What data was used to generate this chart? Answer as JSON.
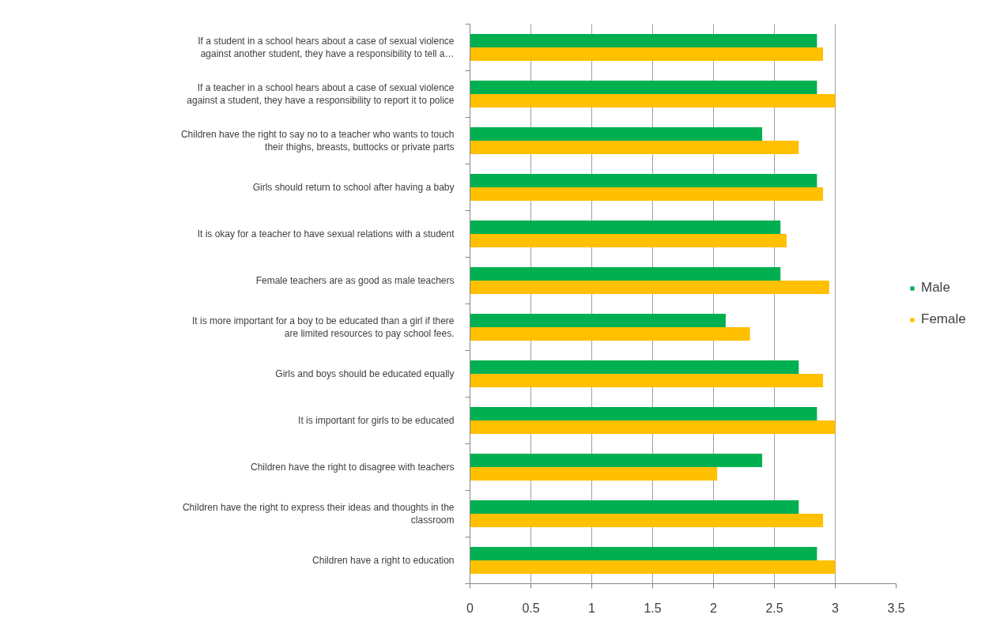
{
  "chart_data": {
    "type": "bar",
    "orientation": "horizontal",
    "categories": [
      "If a student in a school hears about a case of sexual violence\nagainst another student, they have a responsibility to tell a…",
      "If a teacher in a school hears about a case of sexual violence\nagainst a student, they have a responsibility to report it to police",
      "Children have the right to say no to a teacher who wants to touch\ntheir thighs, breasts, buttocks or private parts",
      "Girls should return to school after having a baby",
      "It is okay for a teacher to have sexual relations with a student",
      "Female teachers are as good as male teachers",
      "It is more important for a boy to be educated than a girl if there\nare limited resources to pay school fees.",
      "Girls and boys should be educated equally",
      "It is important for girls to be educated",
      "Children have the right to disagree with teachers",
      "Children have the right to express their ideas and thoughts in the\nclassroom",
      "Children have a right to education"
    ],
    "series": [
      {
        "name": "Male",
        "color": "#00b050",
        "values": [
          2.85,
          2.85,
          2.4,
          2.85,
          2.55,
          2.55,
          2.1,
          2.7,
          2.85,
          2.4,
          2.7,
          2.85
        ]
      },
      {
        "name": "Female",
        "color": "#ffc000",
        "values": [
          2.9,
          3.0,
          2.7,
          2.9,
          2.6,
          2.95,
          2.3,
          2.9,
          3.0,
          2.03,
          2.9,
          3.0
        ]
      }
    ],
    "xlim": [
      0,
      3.5
    ],
    "xticks": [
      0,
      0.5,
      1,
      1.5,
      2,
      2.5,
      3,
      3.5
    ],
    "grid": "x",
    "legend": "right"
  }
}
